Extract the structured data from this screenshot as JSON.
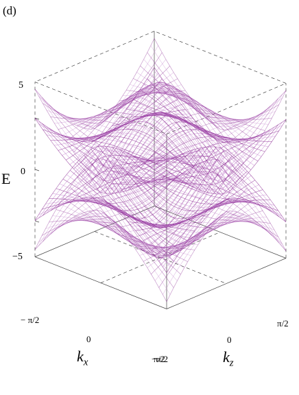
{
  "panel_label": "(d)",
  "colors": {
    "surface": "#8b2a93",
    "surface_light": "#c78bd0",
    "box": "#444444"
  },
  "chart_data": {
    "type": "surface3d",
    "title": "",
    "zlabel": "E",
    "xlabel_main": "k",
    "xlabel_sub": "x",
    "ylabel_main": "k",
    "ylabel_sub": "z",
    "z_ticks": [
      "5",
      "0",
      "−5"
    ],
    "kx_ticks": [
      "− π/2",
      "0",
      "π/2"
    ],
    "kz_ticks": [
      "−π/2",
      "0",
      "π/2"
    ],
    "kx_range": [
      -1.5708,
      1.5708
    ],
    "kz_range": [
      -1.5708,
      1.5708
    ],
    "z_range": [
      -8.5,
      8.5
    ],
    "bands": [
      {
        "name": "",
        "max": 8.5,
        "min": 1.5,
        "shape": "upper-outer"
      },
      {
        "name": "",
        "max": 5.5,
        "min": 0.3,
        "shape": "upper-inner"
      },
      {
        "name": "",
        "max": -0.3,
        "min": -5.5,
        "shape": "lower-inner"
      },
      {
        "name": "",
        "max": -1.5,
        "min": -8.5,
        "shape": "lower-outer"
      }
    ]
  }
}
